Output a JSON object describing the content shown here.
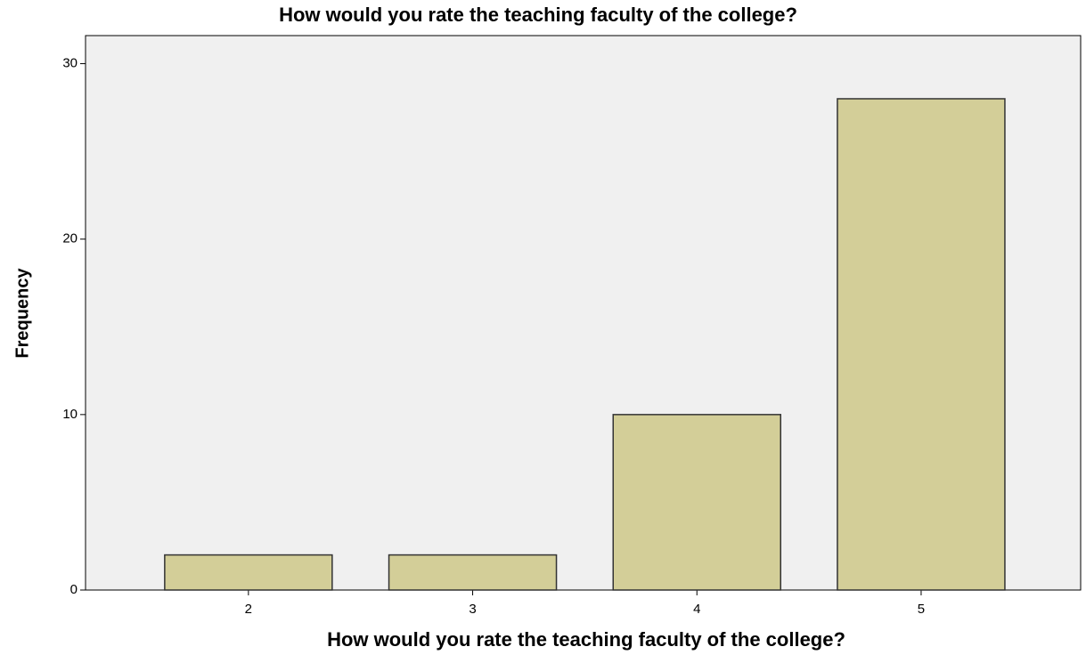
{
  "chart_data": {
    "type": "bar",
    "title": "How would you rate the teaching faculty of the college?",
    "x_label": "How would you rate the teaching faculty of the college?",
    "y_label": "Frequency",
    "categories": [
      "2",
      "3",
      "4",
      "5"
    ],
    "values": [
      2,
      2,
      10,
      28
    ],
    "color": "#d3ce98",
    "ylim": [
      0,
      31.6
    ],
    "yticks": [
      0,
      10,
      20,
      30
    ],
    "grid": false
  }
}
